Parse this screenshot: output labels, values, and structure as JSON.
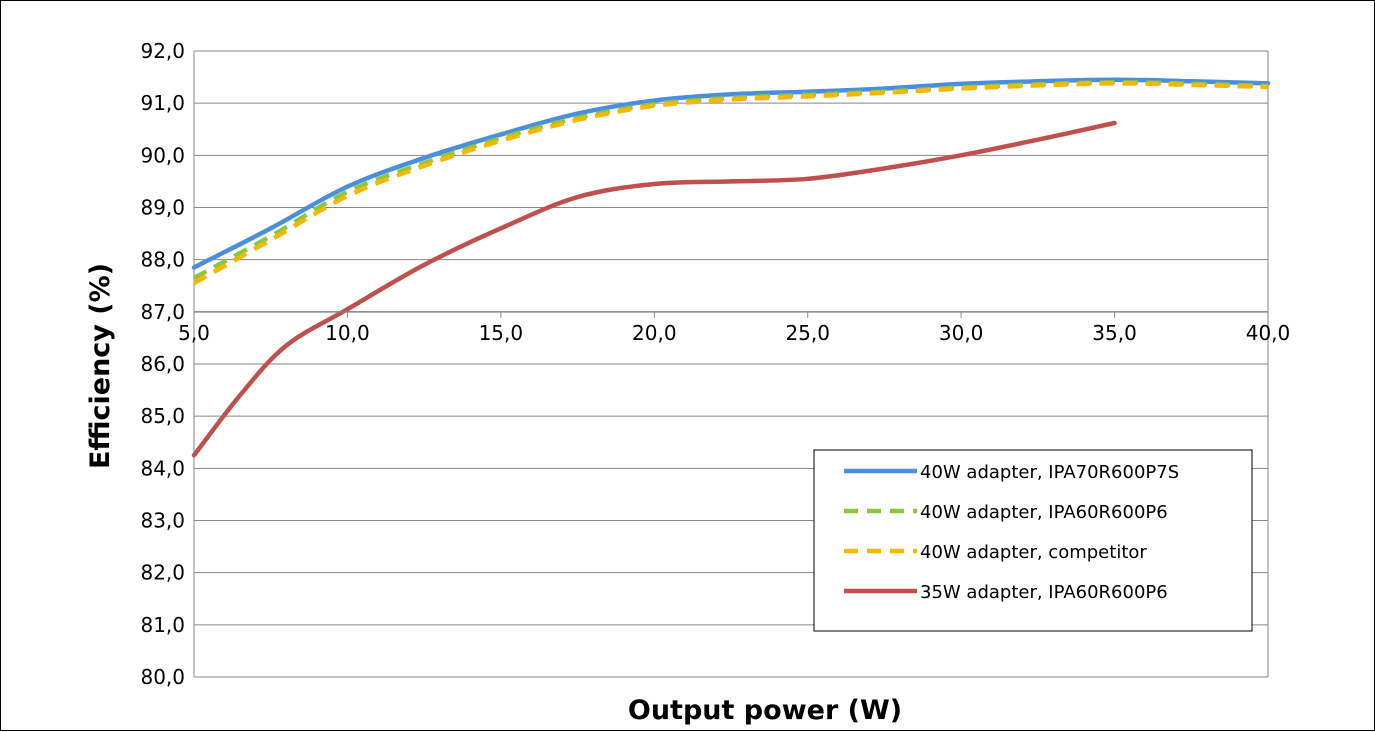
{
  "chart_data": {
    "type": "line",
    "title": "",
    "xlabel": "Output power (W)",
    "ylabel": "Efficiency (%)",
    "xlim": [
      5,
      40
    ],
    "ylim": [
      80,
      92
    ],
    "x_ticks": [
      "5,0",
      "10,0",
      "15,0",
      "20,0",
      "25,0",
      "30,0",
      "35,0",
      "40,0"
    ],
    "y_ticks": [
      "80,0",
      "81,0",
      "82,0",
      "83,0",
      "84,0",
      "85,0",
      "86,0",
      "87,0",
      "88,0",
      "89,0",
      "90,0",
      "91,0",
      "92,0"
    ],
    "x_axis_crosses_y": 87,
    "grid": "horizontal",
    "legend_position": "bottom-right",
    "series": [
      {
        "name": "40W adapter, IPA70R600P7S",
        "color": "#4a8fdc",
        "dash": "solid",
        "points": [
          [
            5,
            87.85
          ],
          [
            7.5,
            88.6
          ],
          [
            10,
            89.4
          ],
          [
            12.5,
            89.95
          ],
          [
            15,
            90.4
          ],
          [
            17.5,
            90.8
          ],
          [
            20,
            91.05
          ],
          [
            22.5,
            91.17
          ],
          [
            25,
            91.22
          ],
          [
            27.5,
            91.28
          ],
          [
            30,
            91.37
          ],
          [
            32.5,
            91.42
          ],
          [
            35,
            91.45
          ],
          [
            37.5,
            91.42
          ],
          [
            40,
            91.38
          ]
        ]
      },
      {
        "name": "40W adapter, IPA60R600P6",
        "color": "#8cc63f",
        "dash": "dashed",
        "points": [
          [
            5,
            87.65
          ],
          [
            7.5,
            88.45
          ],
          [
            10,
            89.3
          ],
          [
            12.5,
            89.85
          ],
          [
            15,
            90.33
          ],
          [
            17.5,
            90.72
          ],
          [
            20,
            90.98
          ],
          [
            22.5,
            91.1
          ],
          [
            25,
            91.16
          ],
          [
            27.5,
            91.22
          ],
          [
            30,
            91.3
          ],
          [
            32.5,
            91.36
          ],
          [
            35,
            91.4
          ],
          [
            37.5,
            91.37
          ],
          [
            40,
            91.33
          ]
        ]
      },
      {
        "name": "40W adapter, competitor",
        "color": "#f5b800",
        "dash": "dashed",
        "points": [
          [
            5,
            87.55
          ],
          [
            7.5,
            88.38
          ],
          [
            10,
            89.22
          ],
          [
            12.5,
            89.8
          ],
          [
            15,
            90.28
          ],
          [
            17.5,
            90.68
          ],
          [
            20,
            90.95
          ],
          [
            22.5,
            91.07
          ],
          [
            25,
            91.13
          ],
          [
            27.5,
            91.2
          ],
          [
            30,
            91.28
          ],
          [
            32.5,
            91.34
          ],
          [
            35,
            91.38
          ],
          [
            37.5,
            91.35
          ],
          [
            40,
            91.31
          ]
        ]
      },
      {
        "name": "35W adapter, IPA60R600P6",
        "color": "#c0504d",
        "dash": "solid",
        "points": [
          [
            5,
            84.25
          ],
          [
            6.5,
            85.4
          ],
          [
            8,
            86.35
          ],
          [
            10,
            87.05
          ],
          [
            12.5,
            87.9
          ],
          [
            15,
            88.6
          ],
          [
            17.5,
            89.2
          ],
          [
            20,
            89.45
          ],
          [
            22.5,
            89.5
          ],
          [
            25,
            89.55
          ],
          [
            27.5,
            89.75
          ],
          [
            30,
            90.0
          ],
          [
            32.5,
            90.3
          ],
          [
            35,
            90.62
          ]
        ]
      }
    ]
  }
}
